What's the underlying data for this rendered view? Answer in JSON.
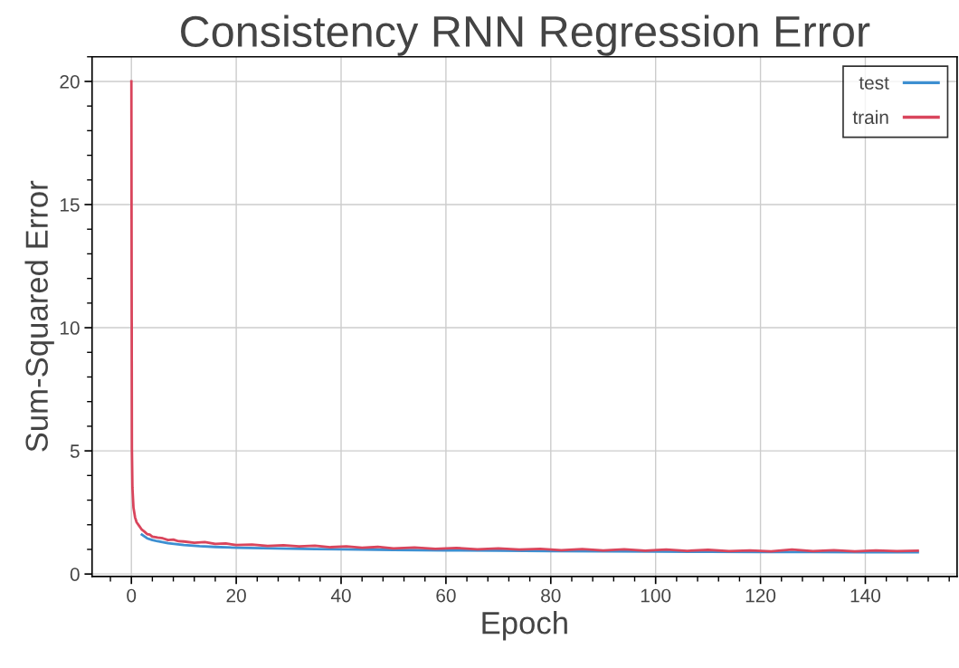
{
  "chart_data": {
    "type": "line",
    "title": "Consistency RNN Regression Error",
    "xlabel": "Epoch",
    "ylabel": "Sum-Squared Error",
    "xlim": [
      -7.5,
      157.5
    ],
    "ylim": [
      -0.1,
      21
    ],
    "xticks": [
      0,
      20,
      40,
      60,
      80,
      100,
      120,
      140
    ],
    "yticks": [
      0,
      5,
      10,
      15,
      20
    ],
    "grid": true,
    "legend": "top right",
    "line_style": "solid",
    "marker": "none",
    "series": [
      {
        "name": "test",
        "color": "#3d8fd1",
        "x": [
          2,
          3,
          4,
          5,
          7,
          10,
          13,
          16,
          20,
          25,
          30,
          35,
          40,
          50,
          60,
          70,
          80,
          90,
          100,
          110,
          120,
          130,
          140,
          150
        ],
        "values": [
          1.6,
          1.45,
          1.38,
          1.33,
          1.25,
          1.18,
          1.13,
          1.1,
          1.07,
          1.05,
          1.03,
          1.01,
          1,
          0.98,
          0.96,
          0.95,
          0.93,
          0.92,
          0.91,
          0.9,
          0.89,
          0.89,
          0.88,
          0.88
        ]
      },
      {
        "name": "train",
        "color": "#d9455c",
        "x": [
          0,
          0.05,
          0.1,
          0.2,
          0.4,
          0.7,
          1,
          1.5,
          2,
          2.5,
          3,
          3.5,
          4,
          5,
          6,
          7,
          8,
          9,
          10,
          12,
          14,
          16,
          18,
          20,
          23,
          26,
          29,
          32,
          35,
          38,
          41,
          44,
          47,
          50,
          54,
          58,
          62,
          66,
          70,
          74,
          78,
          82,
          86,
          90,
          94,
          98,
          102,
          106,
          110,
          114,
          118,
          122,
          126,
          130,
          134,
          138,
          142,
          146,
          150
        ],
        "values": [
          20,
          12,
          5.1,
          3.5,
          2.7,
          2.3,
          2.1,
          1.95,
          1.8,
          1.72,
          1.62,
          1.6,
          1.52,
          1.48,
          1.45,
          1.38,
          1.4,
          1.33,
          1.32,
          1.27,
          1.3,
          1.22,
          1.24,
          1.18,
          1.2,
          1.14,
          1.17,
          1.12,
          1.15,
          1.09,
          1.12,
          1.07,
          1.1,
          1.04,
          1.08,
          1.02,
          1.06,
          1.0,
          1.04,
          0.99,
          1.02,
          0.97,
          1.01,
          0.96,
          1.0,
          0.95,
          0.99,
          0.94,
          0.98,
          0.93,
          0.96,
          0.92,
          0.99,
          0.93,
          0.97,
          0.92,
          0.96,
          0.93,
          0.95
        ]
      }
    ]
  }
}
